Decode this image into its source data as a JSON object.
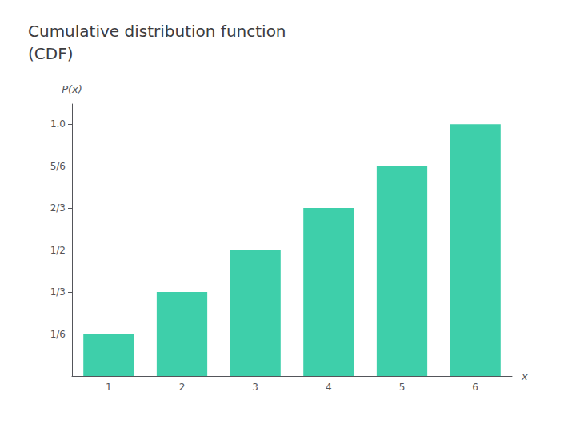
{
  "chart_data": {
    "type": "bar",
    "title": "Cumulative distribution function\n(CDF)",
    "categories": [
      "1",
      "2",
      "3",
      "4",
      "5",
      "6"
    ],
    "values": [
      0.1667,
      0.3333,
      0.5,
      0.6667,
      0.8333,
      1.0
    ],
    "color": "#3ECFAA",
    "xlabel": "x",
    "ylabel": "P(x)",
    "ylim": [
      0,
      1.08
    ],
    "yticks": [
      {
        "value": 0.1667,
        "label": "1/6"
      },
      {
        "value": 0.3333,
        "label": "1/3"
      },
      {
        "value": 0.5,
        "label": "1/2"
      },
      {
        "value": 0.6667,
        "label": "2/3"
      },
      {
        "value": 0.8333,
        "label": "5/6"
      },
      {
        "value": 1.0,
        "label": "1.0"
      }
    ],
    "grid": false
  }
}
